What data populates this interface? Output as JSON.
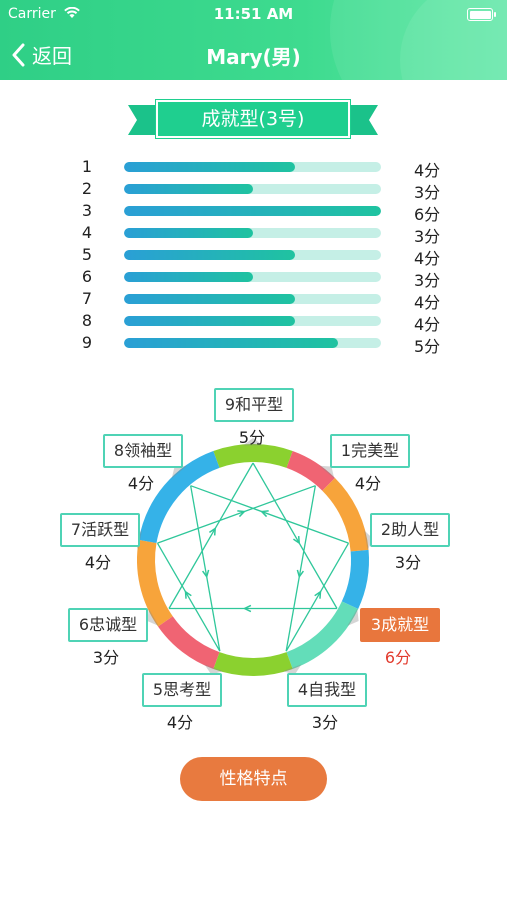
{
  "status_bar": {
    "carrier": "Carrier",
    "time": "11:51 AM"
  },
  "nav": {
    "back_label": "返回",
    "title": "Mary(男)"
  },
  "result": {
    "title": "成就型(3号)"
  },
  "score_bars": [
    {
      "label": "1",
      "value": 4,
      "score_text": "4分"
    },
    {
      "label": "2",
      "value": 3,
      "score_text": "3分"
    },
    {
      "label": "3",
      "value": 6,
      "score_text": "6分"
    },
    {
      "label": "4",
      "value": 3,
      "score_text": "3分"
    },
    {
      "label": "5",
      "value": 4,
      "score_text": "4分"
    },
    {
      "label": "6",
      "value": 3,
      "score_text": "3分"
    },
    {
      "label": "7",
      "value": 4,
      "score_text": "4分"
    },
    {
      "label": "8",
      "value": 4,
      "score_text": "4分"
    },
    {
      "label": "9",
      "value": 5,
      "score_text": "5分"
    }
  ],
  "score_max": 6,
  "types": [
    {
      "id": "9",
      "name": "9和平型",
      "score": "5分",
      "active": false
    },
    {
      "id": "1",
      "name": "1完美型",
      "score": "4分",
      "active": false
    },
    {
      "id": "2",
      "name": "2助人型",
      "score": "3分",
      "active": false
    },
    {
      "id": "3",
      "name": "3成就型",
      "score": "6分",
      "active": true
    },
    {
      "id": "4",
      "name": "4自我型",
      "score": "3分",
      "active": false
    },
    {
      "id": "5",
      "name": "5思考型",
      "score": "4分",
      "active": false
    },
    {
      "id": "6",
      "name": "6忠诚型",
      "score": "3分",
      "active": false
    },
    {
      "id": "7",
      "name": "7活跃型",
      "score": "4分",
      "active": false
    },
    {
      "id": "8",
      "name": "8领袖型",
      "score": "4分",
      "active": false
    }
  ],
  "colors": {
    "header": "#2fcf86",
    "accent_orange": "#e8763d",
    "ring_green": "#8bd12f",
    "ring_red": "#f06473",
    "ring_orange": "#f7a43b",
    "ring_blue": "#35b2e8",
    "ring_teal": "#63ddb9",
    "line": "#2fc79a"
  },
  "cta": {
    "label": "性格特点"
  }
}
